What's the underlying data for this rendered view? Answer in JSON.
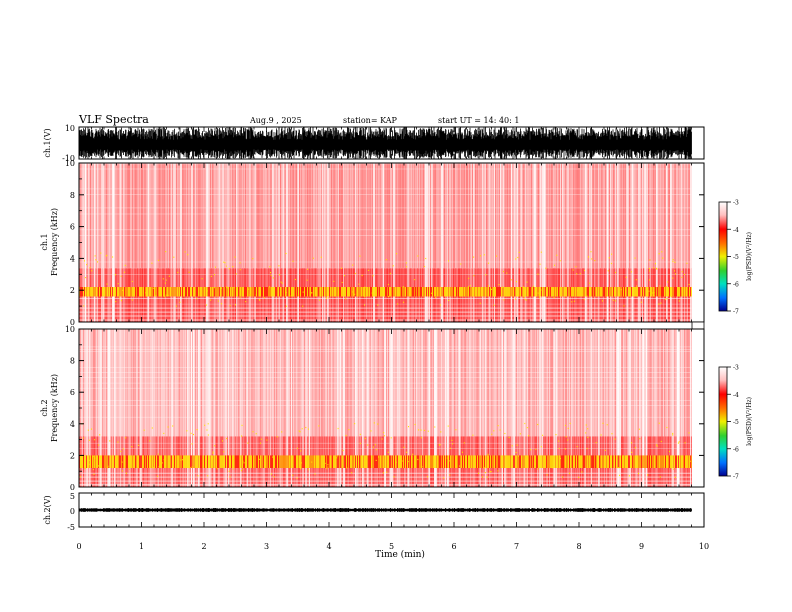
{
  "header": {
    "title": "VLF Spectra",
    "date": "Aug.9 , 2025",
    "station": "station= KAP",
    "start": "start UT = 14: 40: 1"
  },
  "colorbar": {
    "ticks": [
      "-3",
      "-4",
      "-5",
      "-6",
      "-7"
    ],
    "label": "log(PSD)(V²/Hz)",
    "colors": [
      "#000090",
      "#0070ff",
      "#00e0c0",
      "#30d030",
      "#f0f000",
      "#ff7000",
      "#ff0000",
      "#ffc0c0",
      "#ffffff"
    ]
  },
  "chart_data": [
    {
      "type": "line",
      "panel": "waveform-ch1",
      "ylabel": "ch.1(V)",
      "ylim": [
        -10,
        10
      ],
      "y_ticks": [
        "10",
        "-10"
      ],
      "xlim": [
        0,
        9.8
      ]
    },
    {
      "type": "heatmap",
      "panel": "spectrogram-ch1",
      "ylabel_top": "ch.1",
      "ylabel": "Frequency (kHz)",
      "ylim": [
        0,
        10
      ],
      "y_ticks": [
        "0",
        "2",
        "4",
        "6",
        "8",
        "10"
      ],
      "xlim": [
        0,
        9.8
      ],
      "band_khz": [
        1.6,
        2.2
      ]
    },
    {
      "type": "heatmap",
      "panel": "spectrogram-ch2",
      "ylabel_top": "ch.2",
      "ylabel": "Frequency (kHz)",
      "ylim": [
        0,
        10
      ],
      "y_ticks": [
        "0",
        "2",
        "4",
        "6",
        "8",
        "10"
      ],
      "xlim": [
        0,
        9.8
      ],
      "band_khz": [
        1.2,
        2.0
      ]
    },
    {
      "type": "line",
      "panel": "waveform-ch2",
      "ylabel": "ch.2(V)",
      "ylim": [
        -5,
        5
      ],
      "y_ticks": [
        "5",
        "0",
        "-5"
      ],
      "xlim": [
        0,
        9.8
      ]
    }
  ],
  "xaxis": {
    "label": "Time (min)",
    "ticks": [
      "0",
      "1",
      "2",
      "3",
      "4",
      "5",
      "6",
      "7",
      "8",
      "9",
      "10"
    ],
    "range": [
      0,
      10
    ]
  }
}
